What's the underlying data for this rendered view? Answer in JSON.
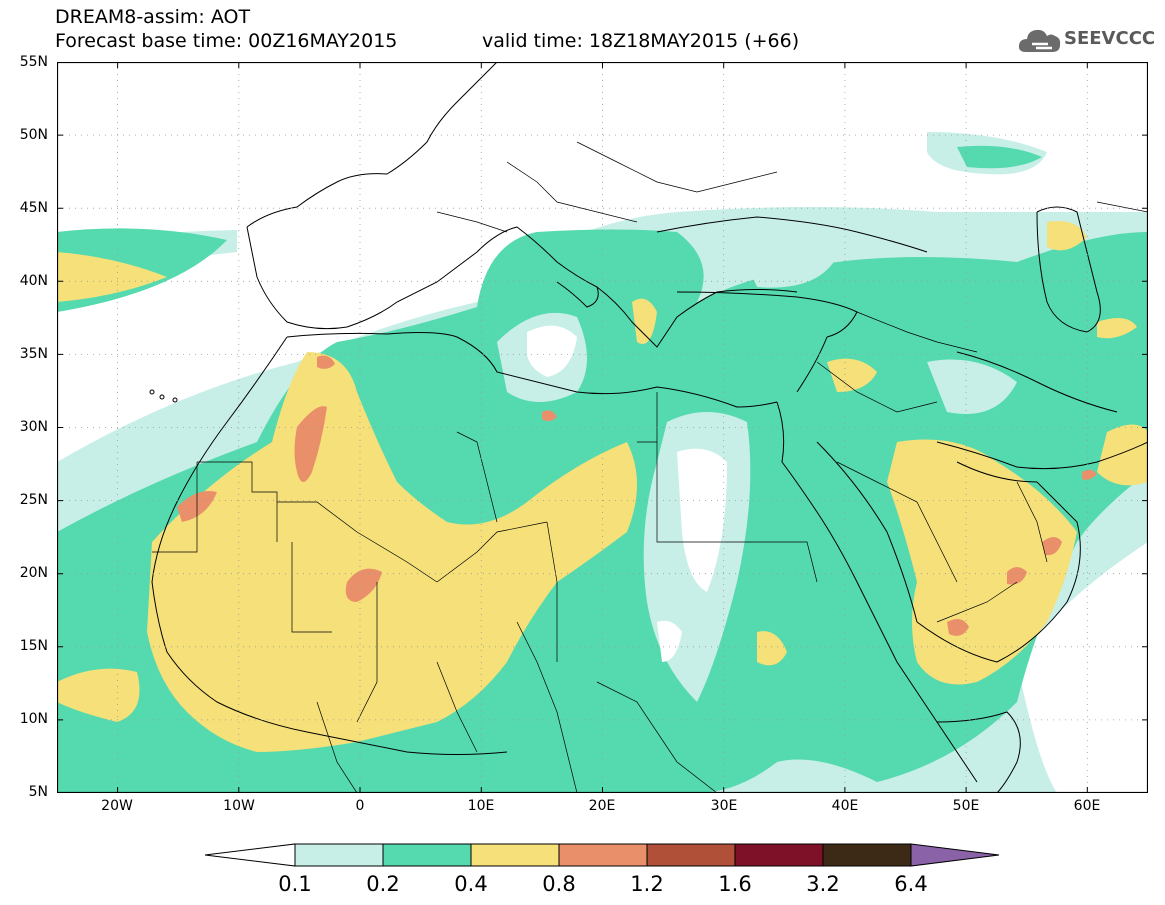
{
  "header": {
    "title_line1": "DREAM8-assim: AOT",
    "title_line2_left": "Forecast base time: 00Z16MAY2015",
    "title_line2_right": "valid time: 18Z18MAY2015 (+66)",
    "logo_text": "SEEVCCC",
    "logo_icon": "cloud-icon"
  },
  "map": {
    "lat_labels": [
      "55N",
      "50N",
      "45N",
      "40N",
      "35N",
      "30N",
      "25N",
      "20N",
      "15N",
      "10N",
      "5N"
    ],
    "lon_labels": [
      "20W",
      "10W",
      "0",
      "10E",
      "20E",
      "30E",
      "40E",
      "50E",
      "60E"
    ],
    "extent": {
      "lon": [
        -25,
        65
      ],
      "lat": [
        5,
        55
      ]
    }
  },
  "colorbar": {
    "labels": [
      "0.1",
      "0.2",
      "0.4",
      "0.8",
      "1.2",
      "1.6",
      "3.2",
      "6.4"
    ],
    "colors": {
      "lt0_1": "#ffffff",
      "c0_1": "#c7efe8",
      "c0_2": "#55d9ae",
      "c0_4": "#f5e07a",
      "c0_8": "#e9906b",
      "c1_2": "#b05038",
      "c1_6": "#7e1028",
      "c3_2": "#3d2a16",
      "gt6_4": "#8a62a8"
    }
  }
}
